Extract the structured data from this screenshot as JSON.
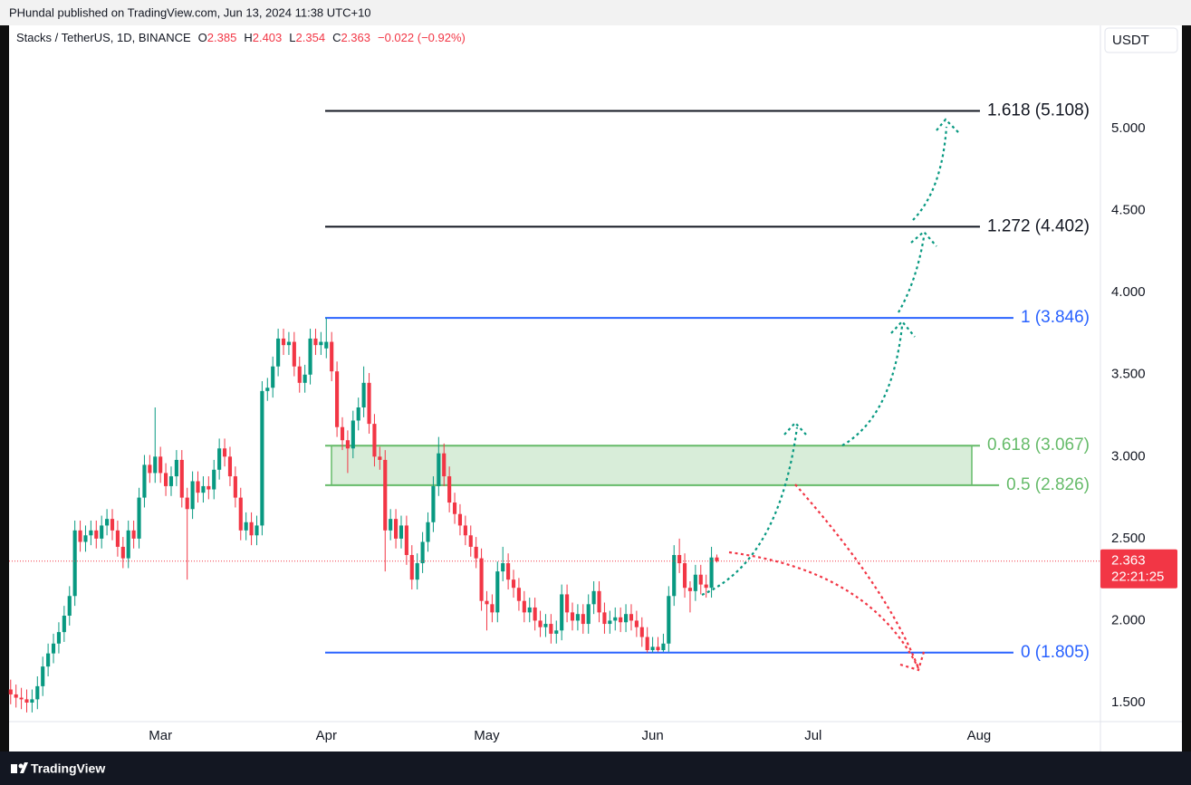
{
  "header": {
    "published": "PHundal published on TradingView.com, Jun 13, 2024 11:38 UTC+10",
    "footer_brand": "TradingView"
  },
  "chart_data": {
    "type": "candlestick",
    "symbol": "Stacks / TetherUS, 1D, BINANCE",
    "ohlc_labels": [
      "O",
      "H",
      "L",
      "C"
    ],
    "change": "−0.022 (−0.92%)",
    "currency": "USDT",
    "countdown": "22:21:25",
    "up_color": "#089981",
    "down_color": "#f23645",
    "open": [
      1.58,
      1.55,
      1.53,
      1.52,
      1.5,
      1.52,
      1.6,
      1.72,
      1.8,
      1.86,
      1.93,
      2.03,
      2.15,
      2.55,
      2.48,
      2.52,
      2.55,
      2.5,
      2.58,
      2.62,
      2.55,
      2.45,
      2.38,
      2.55,
      2.5,
      2.75,
      2.95,
      2.9,
      3.0,
      2.9,
      2.82,
      2.88,
      2.98,
      2.75,
      2.68,
      2.85,
      2.78,
      2.82,
      2.8,
      2.92,
      3.05,
      3.0,
      2.88,
      2.75,
      2.55,
      2.6,
      2.52,
      2.58,
      3.4,
      3.42,
      3.55,
      3.72,
      3.68,
      3.7,
      3.55,
      3.45,
      3.5,
      3.72,
      3.68,
      3.66,
      3.7,
      3.52,
      3.18,
      3.1,
      3.05,
      3.22,
      3.3,
      3.45,
      3.2,
      3.0,
      2.98,
      2.55,
      2.62,
      2.5,
      2.58,
      2.4,
      2.25,
      2.35,
      2.48,
      2.6,
      2.82,
      3.02,
      2.88,
      2.72,
      2.65,
      2.58,
      2.52,
      2.45,
      2.38,
      2.12,
      2.1,
      2.05,
      2.3,
      2.35,
      2.25,
      2.2,
      2.12,
      2.05,
      2.08,
      2.0,
      1.96,
      1.98,
      1.92,
      1.94,
      2.16,
      2.05,
      2.0,
      2.04,
      1.98,
      2.1,
      2.18,
      2.05,
      1.98,
      2.0,
      2.02,
      1.99,
      2.04,
      2.0,
      1.96,
      1.9,
      1.82,
      1.84,
      1.82,
      1.86,
      2.15,
      2.4,
      2.35,
      2.2,
      2.18,
      2.28,
      2.22,
      2.2,
      2.385
    ],
    "high": [
      1.64,
      1.61,
      1.59,
      1.58,
      1.58,
      1.66,
      1.78,
      1.86,
      1.92,
      1.99,
      2.09,
      2.21,
      2.61,
      2.61,
      2.58,
      2.61,
      2.61,
      2.64,
      2.68,
      2.68,
      2.61,
      2.51,
      2.61,
      2.61,
      2.81,
      3.01,
      3.01,
      3.3,
      3.06,
      2.96,
      2.94,
      3.04,
      3.04,
      2.81,
      2.91,
      2.91,
      2.88,
      2.88,
      2.98,
      3.11,
      3.11,
      3.06,
      2.94,
      2.81,
      2.66,
      2.66,
      2.64,
      3.46,
      3.48,
      3.61,
      3.78,
      3.78,
      3.76,
      3.76,
      3.61,
      3.56,
      3.78,
      3.78,
      3.76,
      3.846,
      3.76,
      3.58,
      3.24,
      3.16,
      3.28,
      3.36,
      3.55,
      3.51,
      3.26,
      3.06,
      3.04,
      2.68,
      2.68,
      2.64,
      2.64,
      2.46,
      2.41,
      2.54,
      2.66,
      2.88,
      3.12,
      3.08,
      2.94,
      2.78,
      2.71,
      2.64,
      2.58,
      2.51,
      2.44,
      2.18,
      2.16,
      2.36,
      2.45,
      2.41,
      2.31,
      2.26,
      2.18,
      2.14,
      2.14,
      2.06,
      2.04,
      2.04,
      2.0,
      2.22,
      2.22,
      2.11,
      2.1,
      2.1,
      2.16,
      2.24,
      2.24,
      2.11,
      2.06,
      2.08,
      2.08,
      2.1,
      2.1,
      2.06,
      2.02,
      1.96,
      1.9,
      1.9,
      1.92,
      2.21,
      2.46,
      2.5,
      2.41,
      2.24,
      2.34,
      2.34,
      2.28,
      2.45,
      2.403
    ],
    "low": [
      1.49,
      1.47,
      1.46,
      1.44,
      1.44,
      1.46,
      1.54,
      1.66,
      1.74,
      1.8,
      1.87,
      1.97,
      2.09,
      2.42,
      2.42,
      2.46,
      2.44,
      2.44,
      2.52,
      2.49,
      2.39,
      2.32,
      2.32,
      2.44,
      2.44,
      2.69,
      2.84,
      2.84,
      2.84,
      2.76,
      2.76,
      2.82,
      2.69,
      2.25,
      2.62,
      2.72,
      2.72,
      2.74,
      2.74,
      2.86,
      2.94,
      2.82,
      2.69,
      2.49,
      2.49,
      2.46,
      2.46,
      2.52,
      3.34,
      3.36,
      3.49,
      3.62,
      3.62,
      3.49,
      3.39,
      3.39,
      3.44,
      3.62,
      3.62,
      3.6,
      3.46,
      3.12,
      3.04,
      2.9,
      2.99,
      3.16,
      3.24,
      3.14,
      2.94,
      2.92,
      2.3,
      2.49,
      2.44,
      2.44,
      2.34,
      2.19,
      2.19,
      2.29,
      2.42,
      2.54,
      2.76,
      2.82,
      2.66,
      2.59,
      2.52,
      2.46,
      2.39,
      2.32,
      2.06,
      1.94,
      1.99,
      1.99,
      2.24,
      2.19,
      2.14,
      2.06,
      1.99,
      1.99,
      1.94,
      1.9,
      1.9,
      1.86,
      1.86,
      1.88,
      1.99,
      1.94,
      1.94,
      1.92,
      1.92,
      2.04,
      1.99,
      1.92,
      1.92,
      1.94,
      1.93,
      1.93,
      1.94,
      1.9,
      1.84,
      1.805,
      1.805,
      1.81,
      1.81,
      1.81,
      2.09,
      2.29,
      2.14,
      2.05,
      2.12,
      2.16,
      2.14,
      2.14,
      2.354
    ],
    "close": [
      1.55,
      1.53,
      1.52,
      1.5,
      1.52,
      1.6,
      1.72,
      1.8,
      1.86,
      1.93,
      2.03,
      2.15,
      2.55,
      2.48,
      2.52,
      2.55,
      2.5,
      2.58,
      2.62,
      2.55,
      2.45,
      2.38,
      2.55,
      2.5,
      2.75,
      2.95,
      2.9,
      3.0,
      2.9,
      2.82,
      2.88,
      2.98,
      2.75,
      2.68,
      2.85,
      2.78,
      2.82,
      2.8,
      2.92,
      3.05,
      3.0,
      2.88,
      2.75,
      2.55,
      2.6,
      2.52,
      2.58,
      3.4,
      3.42,
      3.55,
      3.72,
      3.68,
      3.7,
      3.55,
      3.45,
      3.5,
      3.72,
      3.68,
      3.7,
      3.7,
      3.52,
      3.18,
      3.1,
      3.05,
      3.22,
      3.3,
      3.45,
      3.2,
      3.0,
      2.98,
      2.55,
      2.62,
      2.5,
      2.58,
      2.4,
      2.25,
      2.35,
      2.48,
      2.6,
      2.82,
      3.02,
      2.88,
      2.72,
      2.65,
      2.58,
      2.52,
      2.45,
      2.38,
      2.12,
      2.1,
      2.05,
      2.3,
      2.35,
      2.25,
      2.2,
      2.12,
      2.05,
      2.08,
      2.0,
      1.96,
      1.98,
      1.92,
      1.94,
      2.16,
      2.05,
      2.0,
      2.04,
      1.98,
      2.1,
      2.18,
      2.05,
      1.98,
      2.0,
      2.02,
      1.99,
      2.04,
      2.0,
      1.96,
      1.9,
      1.82,
      1.84,
      1.82,
      1.86,
      2.15,
      2.4,
      2.35,
      2.2,
      2.18,
      2.28,
      2.22,
      2.2,
      2.385,
      2.363
    ],
    "xlim": [
      -0.3,
      203.7
    ],
    "xticks": [
      {
        "value": 28,
        "label": "Mar"
      },
      {
        "value": 59,
        "label": "Apr"
      },
      {
        "value": 89,
        "label": "May"
      },
      {
        "value": 120,
        "label": "Jun"
      },
      {
        "value": 150,
        "label": "Jul"
      },
      {
        "value": 181,
        "label": "Aug"
      }
    ],
    "ylim": [
      1.384,
      5.63
    ],
    "yticks": [
      {
        "value": 1.5,
        "label": "1.500"
      },
      {
        "value": 2,
        "label": "2.000"
      },
      {
        "value": 2.5,
        "label": "2.500"
      },
      {
        "value": 3,
        "label": "3.000"
      },
      {
        "value": 3.5,
        "label": "3.500"
      },
      {
        "value": 4,
        "label": "4.000"
      },
      {
        "value": 4.5,
        "label": "4.500"
      },
      {
        "value": 5,
        "label": "5.000"
      }
    ],
    "grid": false,
    "fib_levels": [
      {
        "label": "1.618 (5.108)",
        "value": 5.108,
        "color": "#131722"
      },
      {
        "label": "1.272 (4.402)",
        "value": 4.402,
        "color": "#131722"
      },
      {
        "label": "1 (3.846)",
        "value": 3.846,
        "color": "#2962ff"
      },
      {
        "label": "0.618 (3.067)",
        "value": 3.067,
        "color": "#66bb6a"
      },
      {
        "label": "0.5 (2.826)",
        "value": 2.826,
        "color": "#66bb6a"
      },
      {
        "label": "0 (1.805)",
        "value": 1.805,
        "color": "#2962ff"
      }
    ]
  }
}
